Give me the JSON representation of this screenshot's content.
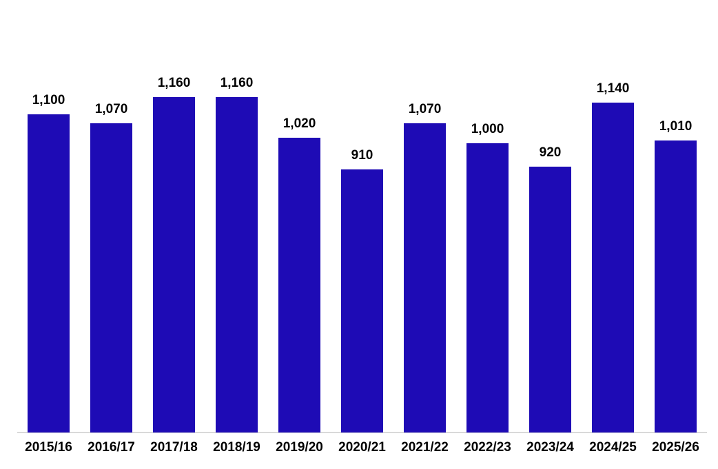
{
  "chart_data": {
    "type": "bar",
    "title": "",
    "xlabel": "",
    "ylabel": "",
    "categories": [
      "2015/16",
      "2016/17",
      "2017/18",
      "2018/19",
      "2019/20",
      "2020/21",
      "2021/22",
      "2022/23",
      "2023/24",
      "2024/25",
      "2025/26"
    ],
    "values": [
      1100,
      1070,
      1160,
      1160,
      1020,
      910,
      1070,
      1000,
      920,
      1140,
      1010
    ],
    "value_labels": [
      "1,100",
      "1,070",
      "1,160",
      "1,160",
      "1,020",
      "910",
      "1,070",
      "1,000",
      "920",
      "1,140",
      "1,010"
    ],
    "ylim": [
      0,
      1200
    ],
    "grid": false,
    "legend": false,
    "data_labels_position": "above-bar",
    "colors": {
      "bar_fill": "#1E0BB5",
      "data_label_text": "#000000",
      "tick_label_text": "#000000",
      "axis_line": "#D9D9D9",
      "background": "#FFFFFF"
    }
  }
}
